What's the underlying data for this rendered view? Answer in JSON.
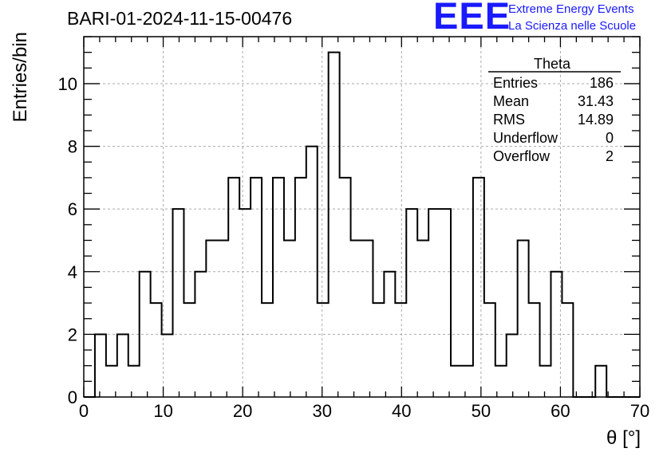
{
  "header": {
    "title": "BARI-01-2024-11-15-00476",
    "logo_text": "EEE",
    "logo_line1": "Extreme Energy Events",
    "logo_line2": "La Scienza nelle Scuole"
  },
  "stats": {
    "title": "Theta",
    "rows": [
      {
        "label": "Entries",
        "value": "186"
      },
      {
        "label": "Mean",
        "value": "31.43"
      },
      {
        "label": "RMS",
        "value": "14.89"
      },
      {
        "label": "Underflow",
        "value": "0"
      },
      {
        "label": "Overflow",
        "value": "2"
      }
    ]
  },
  "chart_data": {
    "type": "histogram",
    "xlabel": "θ [°]",
    "ylabel": "Entries/bin",
    "xlim": [
      0,
      70
    ],
    "ylim": [
      0,
      11.5
    ],
    "bin_edges_start": 0,
    "bin_width": 1.4,
    "values": [
      0,
      2,
      1,
      2,
      1,
      4,
      3,
      2,
      6,
      3,
      4,
      5,
      5,
      7,
      6,
      7,
      3,
      7,
      5,
      7,
      8,
      3,
      11,
      7,
      5,
      5,
      3,
      4,
      3,
      6,
      5,
      6,
      6,
      1,
      1,
      7,
      3,
      1,
      2,
      5,
      3,
      1,
      4,
      3,
      0,
      0,
      1,
      0,
      0,
      0
    ],
    "xticks": [
      0,
      10,
      20,
      30,
      40,
      50,
      60,
      70
    ],
    "yticks": [
      0,
      2,
      4,
      6,
      8,
      10
    ],
    "grid": true,
    "colors": {
      "line": "#000000",
      "grid": "#aaaaaa",
      "logo": "#1a1aff"
    }
  }
}
